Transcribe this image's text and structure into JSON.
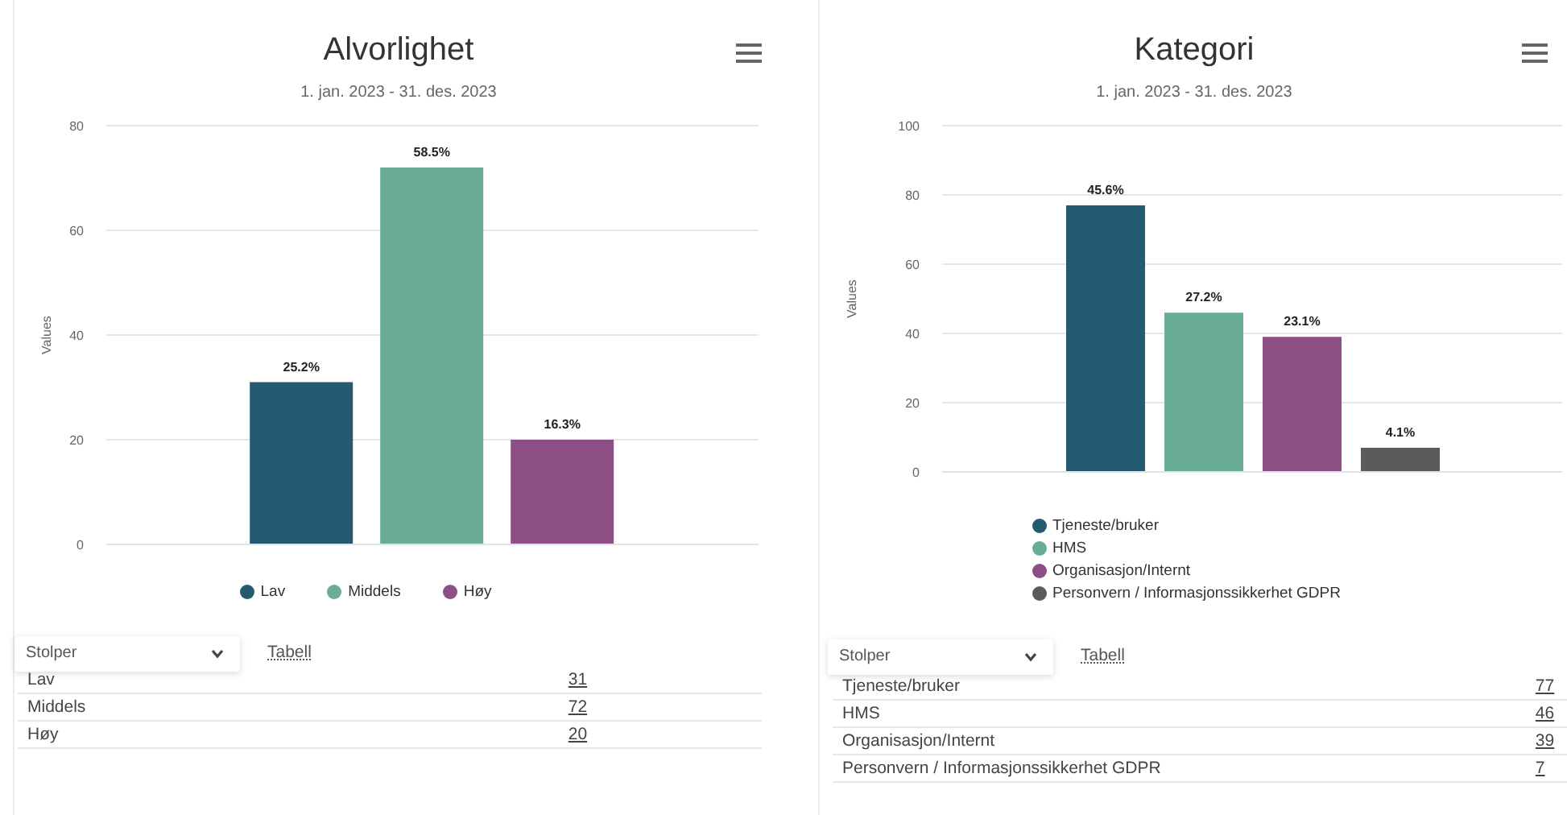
{
  "chart_data": [
    {
      "type": "bar",
      "title": "Alvorlighet",
      "subtitle": "1. jan. 2023 - 31. des. 2023",
      "ylabel": "Values",
      "categories": [
        null
      ],
      "series": [
        {
          "name": "Lav",
          "color": "#245b70",
          "values": [
            31
          ]
        },
        {
          "name": "Middels",
          "color": "#69ac98",
          "values": [
            72
          ]
        },
        {
          "name": "Høy",
          "color": "#8d4f86",
          "values": [
            20
          ]
        }
      ],
      "ylim": [
        0,
        80
      ],
      "yticks": [
        0,
        20,
        40,
        60,
        80
      ],
      "grid": "y",
      "legend": "bottom",
      "annotations": [
        "Stolper",
        "Tabell",
        {
          "text": "25.2%",
          "y": 31
        },
        {
          "text": "58.5%",
          "y": 72
        },
        {
          "text": "16.3%",
          "y": 20
        }
      ]
    },
    {
      "type": "other",
      "categories": [
        "Lav",
        "Middels",
        "Høy"
      ],
      "values": [
        31,
        72,
        20
      ],
      "data_labels": true
    },
    {
      "type": "bar",
      "title": "Kategori",
      "subtitle": "1. jan. 2023 - 31. des. 2023",
      "ylabel": "Values",
      "categories": [
        null
      ],
      "series": [
        {
          "name": "Tjeneste/bruker",
          "color": "#245b70",
          "values": [
            77
          ]
        },
        {
          "name": "HMS",
          "color": "#69ac98",
          "values": [
            46
          ]
        },
        {
          "name": "Organisasjon/Internt",
          "color": "#8d4f86",
          "values": [
            39
          ]
        },
        {
          "name": "Personvern / Informasjonssikkerhet GDPR",
          "color": "#5b5b5b",
          "values": [
            7
          ]
        }
      ],
      "ylim": [
        0,
        100
      ],
      "yticks": [
        0,
        20,
        40,
        60,
        80,
        100
      ],
      "grid": "y",
      "legend": "bottom",
      "annotations": [
        "Stolper",
        "Tabell",
        {
          "text": "45.6%",
          "y": 77
        },
        {
          "text": "27.2%",
          "y": 46
        },
        {
          "text": "23.1%",
          "y": 39
        },
        {
          "text": "4.1%",
          "y": 7
        }
      ]
    },
    {
      "type": "other",
      "categories": [
        "Tjeneste/bruker",
        "HMS",
        "Organisasjon/Internt",
        "Personvern / Informasjonssikkerhet GDPR"
      ],
      "values": [
        77,
        46,
        39,
        7
      ],
      "data_labels": true
    }
  ]
}
